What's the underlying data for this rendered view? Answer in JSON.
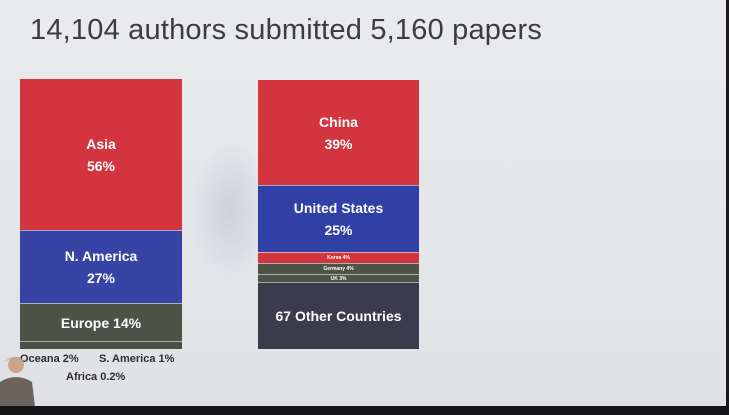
{
  "colors": {
    "asia": "#d3353f",
    "n_america": "#3744a6",
    "europe": "#4e5347",
    "small": "#4b4f45",
    "china": "#d3353f",
    "united_states": "#3040a4",
    "korea": "#d3353f",
    "germany": "#4e5347",
    "uk": "#4e5347",
    "other": "#3c3b4c"
  },
  "chart_data": {
    "type": "bar",
    "title": "14,104 authors submitted 5,160 papers",
    "charts": [
      {
        "name": "by_region",
        "segments": [
          {
            "key": "asia",
            "label": "Asia",
            "value_label": "56%",
            "value": 56
          },
          {
            "key": "n_america",
            "label": "N. America",
            "value_label": "27%",
            "value": 27
          },
          {
            "key": "europe",
            "label": "Europe 14%",
            "value": 14
          },
          {
            "key": "oceana",
            "label": "Oceana 2%",
            "value": 2
          },
          {
            "key": "s_america",
            "label": "S. America 1%",
            "value": 1
          },
          {
            "key": "africa",
            "label": "Africa 0.2%",
            "value": 0.2
          }
        ]
      },
      {
        "name": "by_country",
        "segments": [
          {
            "key": "china",
            "label": "China",
            "value_label": "39%",
            "value": 39
          },
          {
            "key": "united_states",
            "label": "United States",
            "value_label": "25%",
            "value": 25
          },
          {
            "key": "korea",
            "label": "Korea 4%",
            "value": 4
          },
          {
            "key": "germany",
            "label": "Germany 4%",
            "value": 4
          },
          {
            "key": "uk",
            "label": "UK 3%",
            "value": 3
          },
          {
            "key": "other",
            "label": "67 Other Countries",
            "value": 25
          }
        ]
      }
    ]
  }
}
